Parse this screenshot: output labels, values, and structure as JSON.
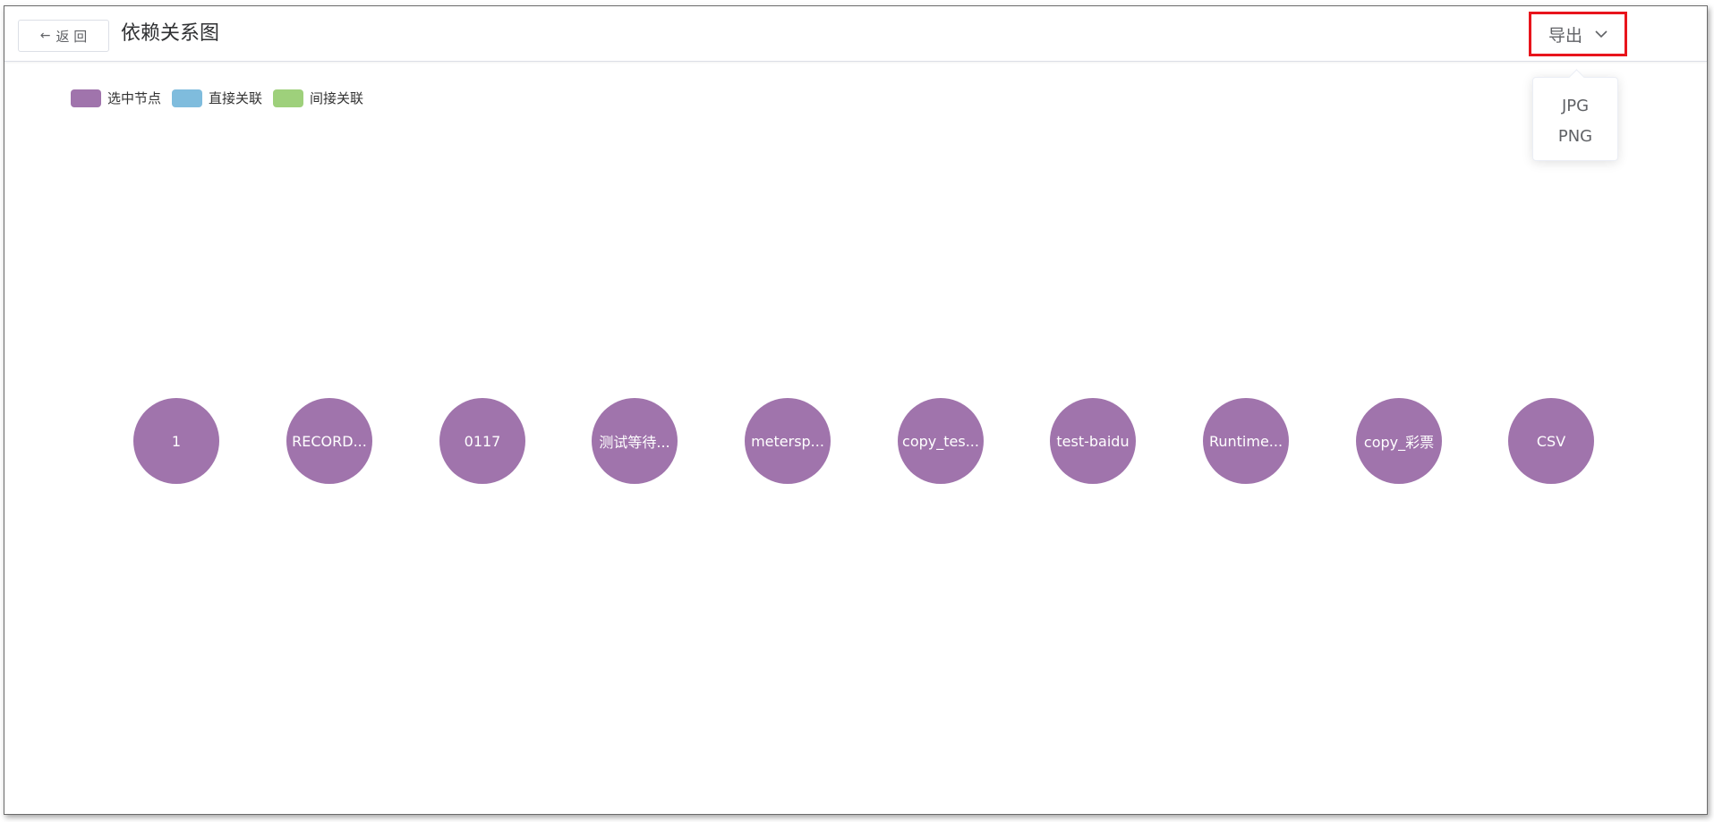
{
  "header": {
    "back_label": "返 回",
    "back_icon": "arrow-left-icon",
    "title": "依赖关系图",
    "export_label": "导出",
    "export_icon": "chevron-down-icon"
  },
  "export_menu": {
    "items": [
      {
        "label": "JPG"
      },
      {
        "label": "PNG"
      }
    ]
  },
  "legend": {
    "entries": [
      {
        "label": "选中节点",
        "color": "#a074ac"
      },
      {
        "label": "直接关联",
        "color": "#7fbcdd"
      },
      {
        "label": "间接关联",
        "color": "#9ed07b"
      }
    ]
  },
  "colors": {
    "selected_node": "#a074ac",
    "highlight_border": "#e8141c"
  },
  "graph": {
    "nodes": [
      {
        "label": "1"
      },
      {
        "label": "RECORD..."
      },
      {
        "label": "0117"
      },
      {
        "label": "测试等待..."
      },
      {
        "label": "metersp..."
      },
      {
        "label": "copy_tes..."
      },
      {
        "label": "test-baidu"
      },
      {
        "label": "Runtime..."
      },
      {
        "label": "copy_彩票"
      },
      {
        "label": "CSV"
      }
    ]
  }
}
